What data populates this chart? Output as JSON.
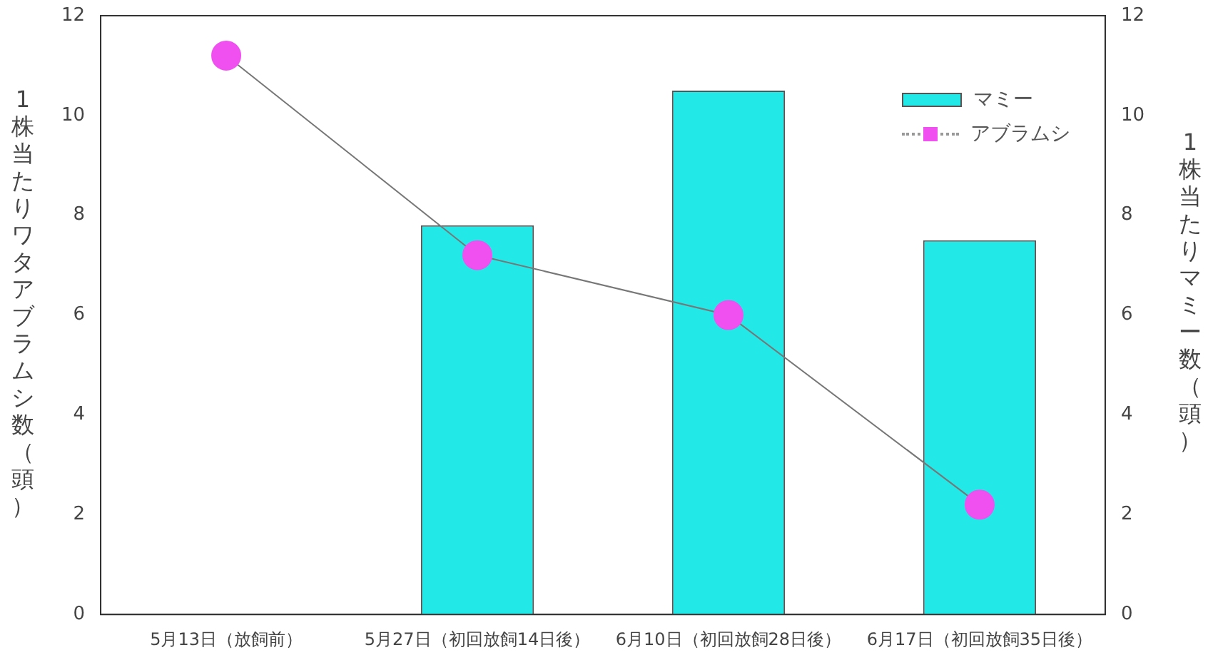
{
  "chart_data": {
    "type": "bar",
    "categories": [
      "5月13日（放飼前）",
      "5月27日（初回放飼14日後）",
      "6月10日（初回放飼28日後）",
      "6月17日（初回放飼35日後）"
    ],
    "series": [
      {
        "name": "マミー",
        "axis": "y2",
        "color": "#22e8e8",
        "values": [
          0,
          7.8,
          10.5,
          7.5
        ]
      },
      {
        "name": "アブラムシ",
        "type": "line",
        "color": "#f050f0",
        "marker": "circle",
        "values": [
          11.2,
          7.2,
          6.0,
          2.2
        ]
      }
    ],
    "ylabel": "1株当たりワタアブラムシ数（頭）",
    "y2label": "1株当たりマミー数（頭）",
    "ylim": [
      0,
      12
    ],
    "yticks": [
      0,
      2,
      4,
      6,
      8,
      10,
      12
    ],
    "y2lim": [
      0,
      12
    ],
    "y2ticks": [
      0,
      2,
      4,
      6,
      8,
      10,
      12
    ],
    "grid": false,
    "legend": "top right"
  }
}
